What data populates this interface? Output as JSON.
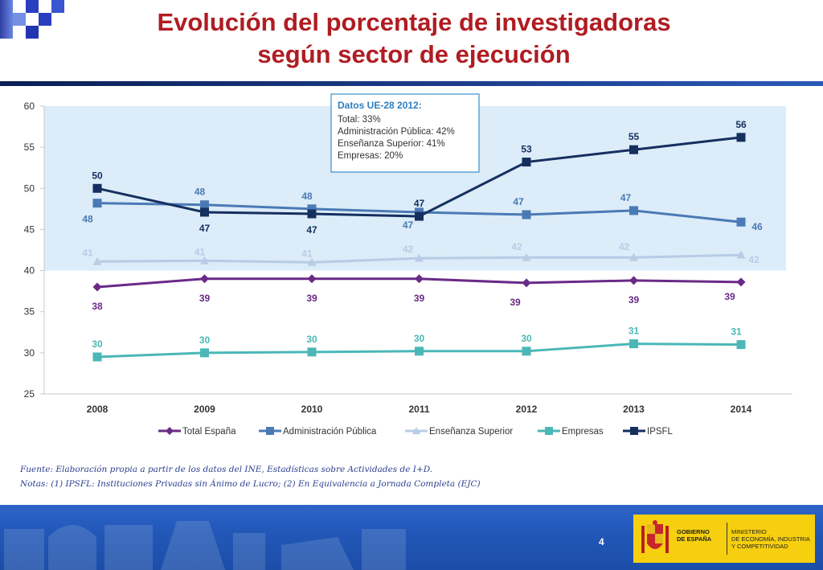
{
  "header": {
    "title_line1": "Evolución del porcentaje de investigadoras",
    "title_line2": "según sector de ejecución"
  },
  "chart_data": {
    "type": "line",
    "categories": [
      "2008",
      "2009",
      "2010",
      "2011",
      "2012",
      "2013",
      "2014"
    ],
    "ylim": [
      25,
      60
    ],
    "yticks": [
      25,
      30,
      35,
      40,
      45,
      50,
      55,
      60
    ],
    "grid": false,
    "legend_position": "bottom",
    "highlight_band": [
      40,
      60
    ],
    "series": [
      {
        "name": "Total España",
        "color": "#6a2a87",
        "marker": "diamond",
        "values": [
          38,
          39,
          39,
          39,
          38.5,
          38.8,
          38.6
        ],
        "labels": [
          "38",
          "39",
          "39",
          "39",
          "39",
          "39",
          "39"
        ]
      },
      {
        "name": "Administración Pública",
        "color": "#4a7ab5",
        "marker": "square",
        "values": [
          48.2,
          48,
          47.5,
          47.1,
          46.8,
          47.3,
          45.9
        ],
        "labels": [
          "48",
          "48",
          "48",
          "47",
          "47",
          "47",
          "46"
        ]
      },
      {
        "name": "Enseñanza Superior",
        "color": "#b8cce6",
        "marker": "triangle",
        "values": [
          41.1,
          41.2,
          41,
          41.5,
          41.6,
          41.6,
          41.9
        ],
        "labels": [
          "41",
          "41",
          "41",
          "42",
          "42",
          "42",
          "42"
        ]
      },
      {
        "name": "Empresas",
        "color": "#4bb7b7",
        "marker": "square",
        "values": [
          29.5,
          30,
          30.1,
          30.2,
          30.2,
          31.1,
          31
        ],
        "labels": [
          "30",
          "30",
          "30",
          "30",
          "30",
          "31",
          "31"
        ]
      },
      {
        "name": "IPSFL",
        "color": "#152f5f",
        "marker": "square",
        "values": [
          50,
          47.1,
          46.9,
          46.6,
          53.2,
          54.7,
          56.2
        ],
        "labels": [
          "50",
          "47",
          "47",
          "47",
          "53",
          "55",
          "56"
        ]
      }
    ],
    "annotation": {
      "title": "Datos UE-28 2012:",
      "lines": [
        "Total: 33%",
        "Administración Pública: 42%",
        "Enseñanza Superior: 41%",
        "Empresas: 20%"
      ]
    }
  },
  "notes": {
    "source": "Fuente: Elaboración propia a partir de los datos del INE, Estadísticas sobre Actividades de I+D.",
    "notes": "Notas: (1) IPSFL: Instituciones Privadas sin Ánimo de Lucro; (2) En Equivalencia a Jornada Completa (EJC)"
  },
  "footer": {
    "page_number": "4",
    "gov_line1": "GOBIERNO",
    "gov_line2": "DE ESPAÑA",
    "ministry_line1": "MINISTERIO",
    "ministry_line2": "DE ECONOMÍA, INDUSTRIA",
    "ministry_line3": "Y COMPETITIVIDAD",
    "colors": {
      "band": "#2258b8",
      "logo_box": "#f6cf0f",
      "title": "#b01c22"
    }
  }
}
